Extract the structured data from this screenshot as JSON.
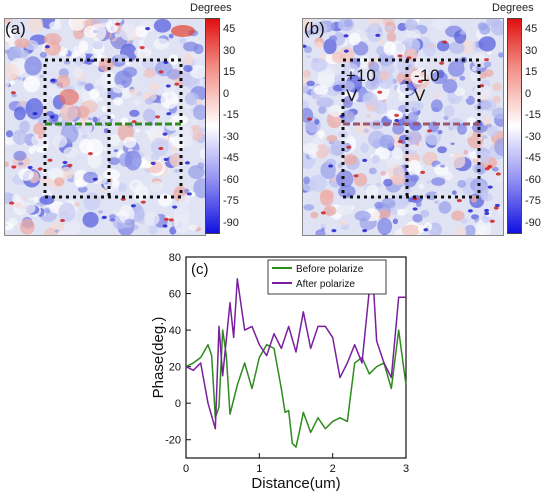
{
  "panels": {
    "a": {
      "label": "(a)",
      "colorbar_title": "Degrees",
      "colorbar_ticks": [
        "45",
        "30",
        "15",
        "0",
        "-15",
        "-30",
        "-45",
        "-60",
        "-75",
        "-90"
      ]
    },
    "b": {
      "label": "(b)",
      "colorbar_title": "Degrees",
      "colorbar_ticks": [
        "45",
        "30",
        "15",
        "0",
        "-15",
        "-30",
        "-45",
        "-60",
        "-75",
        "-90"
      ],
      "left_voltage": "+10 V",
      "right_voltage": "-10 V"
    },
    "c": {
      "label": "(c)"
    }
  },
  "colors": {
    "colorbar_top": "#e01010",
    "colorbar_mid": "#ffffff",
    "colorbar_bottom": "#1010e0",
    "before_line": "#2e8b1e",
    "after_line": "#7a1fa0",
    "profile_line_a": "#2e8b1e",
    "profile_line_b": "#a0556e"
  },
  "chart_data": {
    "type": "line",
    "xlabel": "Distance(um)",
    "ylabel": "Phase(deg.)",
    "xlim": [
      0,
      3
    ],
    "ylim": [
      -30,
      80
    ],
    "xticks": [
      "0",
      "1",
      "2",
      "3"
    ],
    "yticks": [
      "-20",
      "0",
      "20",
      "40",
      "60",
      "80"
    ],
    "legend_position": "top-center",
    "series": [
      {
        "name": "Before polarize",
        "x": [
          0,
          0.1,
          0.2,
          0.3,
          0.35,
          0.4,
          0.45,
          0.5,
          0.55,
          0.6,
          0.7,
          0.8,
          0.9,
          1.0,
          1.1,
          1.2,
          1.3,
          1.35,
          1.4,
          1.45,
          1.5,
          1.55,
          1.6,
          1.7,
          1.8,
          1.9,
          2.0,
          2.1,
          2.2,
          2.3,
          2.4,
          2.5,
          2.6,
          2.7,
          2.8,
          2.9,
          3.0
        ],
        "values": [
          20,
          22,
          25,
          32,
          26,
          -8,
          -2,
          40,
          26,
          -6,
          10,
          22,
          8,
          25,
          32,
          30,
          8,
          -5,
          -4,
          -22,
          -24,
          -15,
          -5,
          -16,
          -8,
          -14,
          -10,
          -8,
          -10,
          22,
          25,
          16,
          20,
          22,
          8,
          40,
          10
        ]
      },
      {
        "name": "After polarize",
        "x": [
          0,
          0.1,
          0.2,
          0.3,
          0.4,
          0.45,
          0.5,
          0.6,
          0.65,
          0.7,
          0.8,
          0.9,
          1.0,
          1.1,
          1.2,
          1.3,
          1.4,
          1.5,
          1.6,
          1.7,
          1.8,
          1.9,
          2.0,
          2.1,
          2.2,
          2.3,
          2.4,
          2.5,
          2.55,
          2.6,
          2.7,
          2.8,
          2.9,
          3.0
        ],
        "values": [
          20,
          18,
          22,
          0,
          -14,
          42,
          15,
          55,
          36,
          68,
          40,
          42,
          32,
          26,
          38,
          30,
          42,
          28,
          50,
          30,
          42,
          42,
          36,
          14,
          22,
          32,
          22,
          62,
          68,
          34,
          22,
          14,
          58,
          58
        ]
      }
    ]
  }
}
